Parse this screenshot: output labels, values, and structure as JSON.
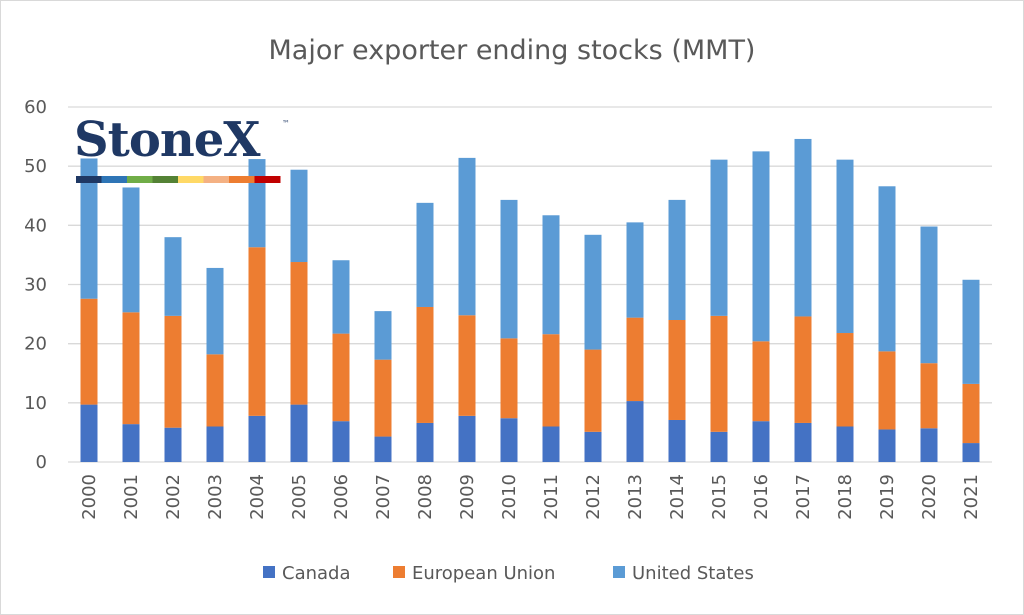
{
  "chart_data": {
    "type": "bar",
    "stacked": true,
    "title": "Major exporter ending stocks (MMT)",
    "xlabel": "",
    "ylabel": "",
    "ylim": [
      0,
      60
    ],
    "yticks": [
      0,
      10,
      20,
      30,
      40,
      50,
      60
    ],
    "grid": true,
    "legend_position": "bottom",
    "categories": [
      "2000",
      "2001",
      "2002",
      "2003",
      "2004",
      "2005",
      "2006",
      "2007",
      "2008",
      "2009",
      "2010",
      "2011",
      "2012",
      "2013",
      "2014",
      "2015",
      "2016",
      "2017",
      "2018",
      "2019",
      "2020",
      "2021"
    ],
    "series": [
      {
        "name": "Canada",
        "color": "#4472c4",
        "values": [
          9.7,
          6.4,
          5.8,
          6.0,
          7.8,
          9.7,
          6.9,
          4.3,
          6.6,
          7.8,
          7.4,
          6.0,
          5.1,
          10.3,
          7.1,
          5.1,
          6.9,
          6.6,
          6.0,
          5.5,
          5.7,
          3.2
        ]
      },
      {
        "name": "European Union",
        "color": "#ed7d31",
        "values": [
          17.9,
          18.9,
          18.9,
          12.2,
          28.5,
          24.1,
          14.8,
          13.0,
          19.6,
          17.0,
          13.5,
          15.6,
          13.9,
          14.1,
          16.9,
          19.6,
          13.5,
          18.0,
          15.8,
          13.2,
          11.0,
          10.0
        ]
      },
      {
        "name": "United States",
        "color": "#5b9bd5",
        "values": [
          23.7,
          21.1,
          13.3,
          14.6,
          14.9,
          15.6,
          12.4,
          8.2,
          17.6,
          26.6,
          23.4,
          20.1,
          19.4,
          16.1,
          20.3,
          26.4,
          32.1,
          30.0,
          29.3,
          27.9,
          23.1,
          17.6
        ]
      }
    ]
  },
  "logo": {
    "text": "StoneX",
    "trademark": "™",
    "stripe_colors": [
      "#1f3864",
      "#2e75b6",
      "#70ad47",
      "#548235",
      "#ffd966",
      "#f4b183",
      "#ed7d31",
      "#c00000"
    ]
  }
}
